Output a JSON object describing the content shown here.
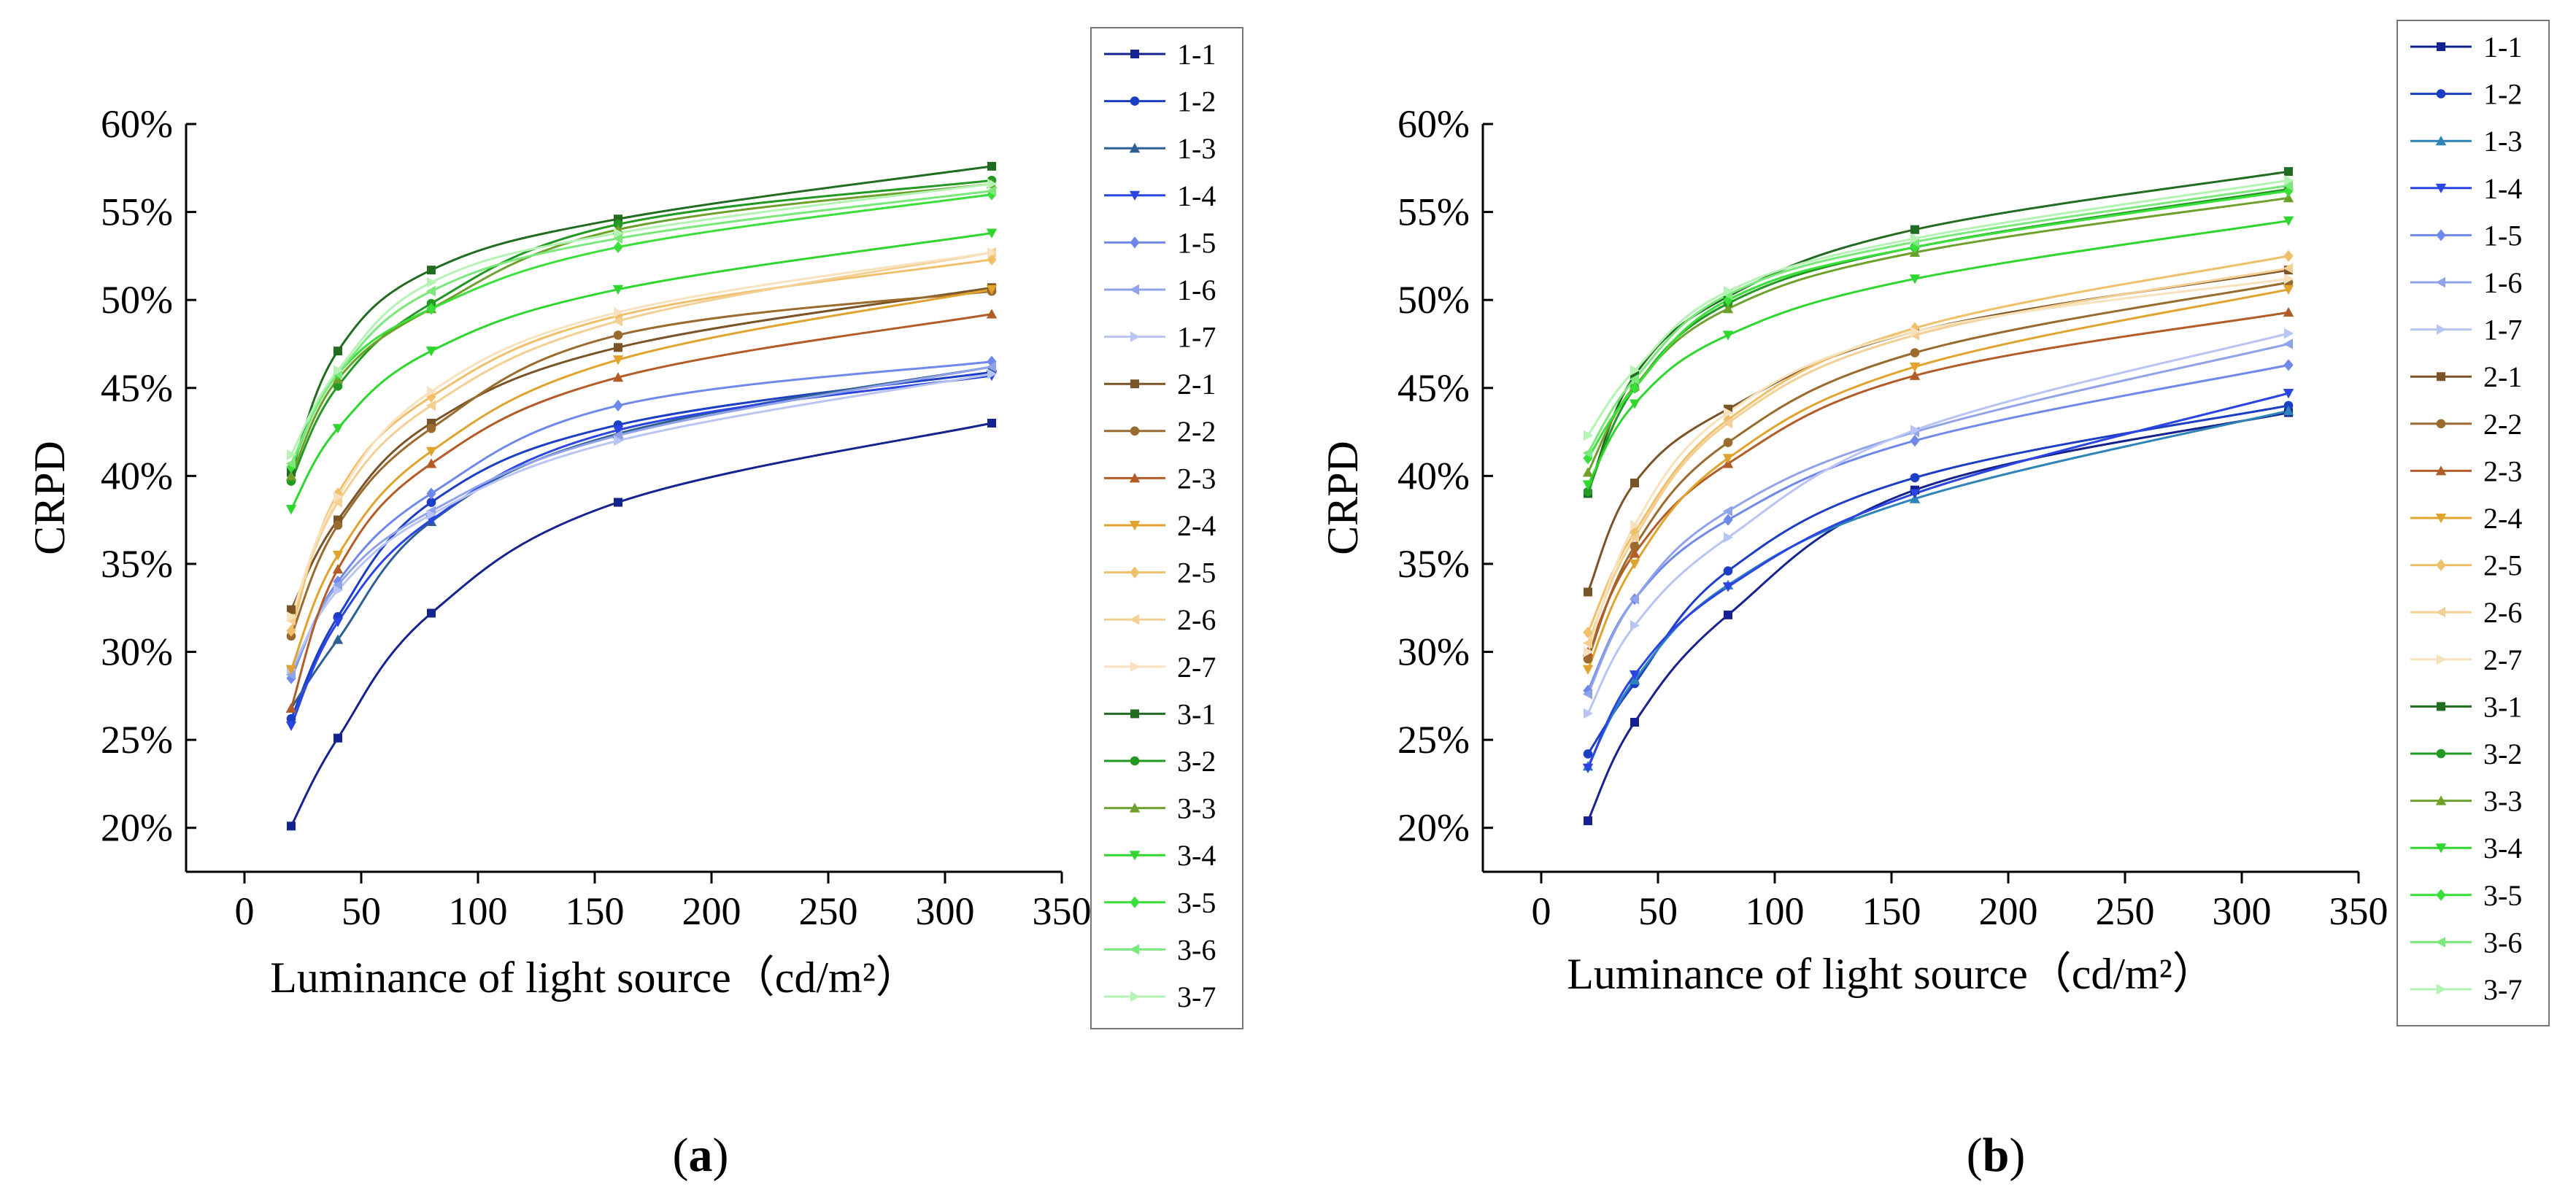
{
  "figure": {
    "panels": [
      {
        "label_open": "(",
        "label_letter": "a",
        "label_close": ")"
      },
      {
        "label_open": "(",
        "label_letter": "b",
        "label_close": ")"
      }
    ]
  },
  "chart_data": [
    {
      "type": "line",
      "panel": "(a)",
      "xlabel": "Luminance of light source（cd/m²）",
      "ylabel": "CRPD",
      "xlim": [
        -25,
        350
      ],
      "ylim": [
        0.175,
        0.6
      ],
      "xticks": [
        0,
        50,
        100,
        150,
        200,
        250,
        300,
        350
      ],
      "yticks": [
        0.2,
        0.25,
        0.3,
        0.35,
        0.4,
        0.45,
        0.5,
        0.55,
        0.6
      ],
      "ytick_labels": [
        "20%",
        "25%",
        "30%",
        "35%",
        "40%",
        "45%",
        "50%",
        "55%",
        "60%"
      ],
      "grid": false,
      "legend": "right",
      "x": [
        20,
        40,
        80,
        160,
        320
      ],
      "series": [
        {
          "name": "1-1",
          "color": "#14238f",
          "marker": "square",
          "values": [
            0.201,
            0.251,
            0.322,
            0.385,
            0.43
          ]
        },
        {
          "name": "1-2",
          "color": "#1c3ec4",
          "marker": "circle",
          "values": [
            0.262,
            0.32,
            0.385,
            0.429,
            0.459
          ]
        },
        {
          "name": "1-3",
          "color": "#2e5f92",
          "marker": "triangle-up",
          "values": [
            0.268,
            0.307,
            0.374,
            0.424,
            0.462
          ]
        },
        {
          "name": "1-4",
          "color": "#2b44e4",
          "marker": "triangle-down",
          "values": [
            0.258,
            0.317,
            0.375,
            0.426,
            0.457
          ]
        },
        {
          "name": "1-5",
          "color": "#6f88ec",
          "marker": "diamond",
          "values": [
            0.285,
            0.34,
            0.39,
            0.44,
            0.465
          ]
        },
        {
          "name": "1-6",
          "color": "#91a3e8",
          "marker": "triangle-left",
          "values": [
            0.287,
            0.338,
            0.38,
            0.423,
            0.462
          ]
        },
        {
          "name": "1-7",
          "color": "#b8c4f4",
          "marker": "triangle-right",
          "values": [
            0.29,
            0.335,
            0.378,
            0.42,
            0.458
          ]
        },
        {
          "name": "2-1",
          "color": "#7a5326",
          "marker": "square",
          "values": [
            0.324,
            0.375,
            0.43,
            0.473,
            0.507
          ]
        },
        {
          "name": "2-2",
          "color": "#9a6b2e",
          "marker": "circle",
          "values": [
            0.309,
            0.372,
            0.427,
            0.48,
            0.505
          ]
        },
        {
          "name": "2-3",
          "color": "#b35c28",
          "marker": "triangle-up",
          "values": [
            0.268,
            0.347,
            0.407,
            0.456,
            0.492
          ]
        },
        {
          "name": "2-4",
          "color": "#e0a42e",
          "marker": "triangle-down",
          "values": [
            0.29,
            0.355,
            0.414,
            0.466,
            0.506
          ]
        },
        {
          "name": "2-5",
          "color": "#efbf6a",
          "marker": "diamond",
          "values": [
            0.312,
            0.39,
            0.445,
            0.491,
            0.523
          ]
        },
        {
          "name": "2-6",
          "color": "#f3cf94",
          "marker": "triangle-left",
          "values": [
            0.318,
            0.385,
            0.44,
            0.488,
            0.527
          ]
        },
        {
          "name": "2-7",
          "color": "#f8e2bd",
          "marker": "triangle-right",
          "values": [
            0.32,
            0.388,
            0.448,
            0.493,
            0.527
          ]
        },
        {
          "name": "3-1",
          "color": "#226c22",
          "marker": "square",
          "values": [
            0.402,
            0.471,
            0.517,
            0.546,
            0.576
          ]
        },
        {
          "name": "3-2",
          "color": "#229922",
          "marker": "circle",
          "values": [
            0.397,
            0.451,
            0.498,
            0.543,
            0.568
          ]
        },
        {
          "name": "3-3",
          "color": "#6ea12c",
          "marker": "triangle-up",
          "values": [
            0.4,
            0.455,
            0.495,
            0.54,
            0.566
          ]
        },
        {
          "name": "3-4",
          "color": "#2ed62e",
          "marker": "triangle-down",
          "values": [
            0.381,
            0.427,
            0.471,
            0.506,
            0.538
          ]
        },
        {
          "name": "3-5",
          "color": "#3ae03a",
          "marker": "diamond",
          "values": [
            0.405,
            0.458,
            0.495,
            0.53,
            0.56
          ]
        },
        {
          "name": "3-6",
          "color": "#7ae87a",
          "marker": "triangle-left",
          "values": [
            0.407,
            0.458,
            0.505,
            0.535,
            0.562
          ]
        },
        {
          "name": "3-7",
          "color": "#b4f3b4",
          "marker": "triangle-right",
          "values": [
            0.412,
            0.46,
            0.51,
            0.538,
            0.566
          ]
        }
      ]
    },
    {
      "type": "line",
      "panel": "(b)",
      "xlabel": "Luminance of light source（cd/m²）",
      "ylabel": "CRPD",
      "xlim": [
        -25,
        350
      ],
      "ylim": [
        0.175,
        0.6
      ],
      "xticks": [
        0,
        50,
        100,
        150,
        200,
        250,
        300,
        350
      ],
      "yticks": [
        0.2,
        0.25,
        0.3,
        0.35,
        0.4,
        0.45,
        0.5,
        0.55,
        0.6
      ],
      "ytick_labels": [
        "20%",
        "25%",
        "30%",
        "35%",
        "40%",
        "45%",
        "50%",
        "55%",
        "60%"
      ],
      "grid": false,
      "legend": "right",
      "x": [
        20,
        40,
        80,
        160,
        320
      ],
      "series": [
        {
          "name": "1-1",
          "color": "#14238f",
          "marker": "square",
          "values": [
            0.204,
            0.26,
            0.321,
            0.392,
            0.436
          ]
        },
        {
          "name": "1-2",
          "color": "#1c3ec4",
          "marker": "circle",
          "values": [
            0.242,
            0.282,
            0.346,
            0.399,
            0.44
          ]
        },
        {
          "name": "1-3",
          "color": "#2e83b8",
          "marker": "triangle-up",
          "values": [
            0.235,
            0.284,
            0.338,
            0.387,
            0.437
          ]
        },
        {
          "name": "1-4",
          "color": "#2b44e4",
          "marker": "triangle-down",
          "values": [
            0.234,
            0.287,
            0.337,
            0.39,
            0.447
          ]
        },
        {
          "name": "1-5",
          "color": "#6f88ec",
          "marker": "diamond",
          "values": [
            0.278,
            0.33,
            0.375,
            0.42,
            0.463
          ]
        },
        {
          "name": "1-6",
          "color": "#91a3e8",
          "marker": "triangle-left",
          "values": [
            0.276,
            0.33,
            0.38,
            0.425,
            0.475
          ]
        },
        {
          "name": "1-7",
          "color": "#b8c4f4",
          "marker": "triangle-right",
          "values": [
            0.265,
            0.315,
            0.365,
            0.426,
            0.481
          ]
        },
        {
          "name": "2-1",
          "color": "#7a5326",
          "marker": "square",
          "values": [
            0.334,
            0.396,
            0.438,
            0.482,
            0.517
          ]
        },
        {
          "name": "2-2",
          "color": "#9a6b2e",
          "marker": "circle",
          "values": [
            0.296,
            0.36,
            0.419,
            0.47,
            0.51
          ]
        },
        {
          "name": "2-3",
          "color": "#b35c28",
          "marker": "triangle-up",
          "values": [
            0.3,
            0.356,
            0.407,
            0.457,
            0.493
          ]
        },
        {
          "name": "2-4",
          "color": "#e0a42e",
          "marker": "triangle-down",
          "values": [
            0.29,
            0.35,
            0.41,
            0.462,
            0.506
          ]
        },
        {
          "name": "2-5",
          "color": "#efbf6a",
          "marker": "diamond",
          "values": [
            0.311,
            0.368,
            0.432,
            0.484,
            0.525
          ]
        },
        {
          "name": "2-6",
          "color": "#f3cf94",
          "marker": "triangle-left",
          "values": [
            0.305,
            0.365,
            0.43,
            0.48,
            0.518
          ]
        },
        {
          "name": "2-7",
          "color": "#f8e2bd",
          "marker": "triangle-right",
          "values": [
            0.3,
            0.372,
            0.436,
            0.482,
            0.512
          ]
        },
        {
          "name": "3-1",
          "color": "#226c22",
          "marker": "square",
          "values": [
            0.39,
            0.457,
            0.502,
            0.54,
            0.573
          ]
        },
        {
          "name": "3-2",
          "color": "#229922",
          "marker": "circle",
          "values": [
            0.391,
            0.45,
            0.498,
            0.53,
            0.563
          ]
        },
        {
          "name": "3-3",
          "color": "#6ea12c",
          "marker": "triangle-up",
          "values": [
            0.402,
            0.451,
            0.495,
            0.527,
            0.558
          ]
        },
        {
          "name": "3-4",
          "color": "#2ed62e",
          "marker": "triangle-down",
          "values": [
            0.395,
            0.441,
            0.48,
            0.512,
            0.545
          ]
        },
        {
          "name": "3-5",
          "color": "#3ae03a",
          "marker": "diamond",
          "values": [
            0.41,
            0.45,
            0.5,
            0.53,
            0.562
          ]
        },
        {
          "name": "3-6",
          "color": "#7ae87a",
          "marker": "triangle-left",
          "values": [
            0.413,
            0.455,
            0.503,
            0.533,
            0.565
          ]
        },
        {
          "name": "3-7",
          "color": "#b4f3b4",
          "marker": "triangle-right",
          "values": [
            0.423,
            0.46,
            0.505,
            0.535,
            0.568
          ]
        }
      ]
    }
  ]
}
